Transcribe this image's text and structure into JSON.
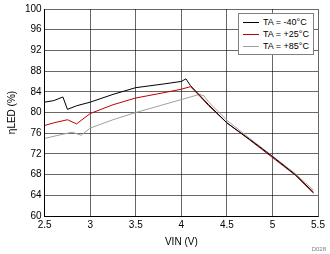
{
  "chart_data": {
    "type": "line",
    "x_label": "VIN (V)",
    "y_label": "ηLED (%)",
    "xlim": [
      2.5,
      5.5
    ],
    "xticks": [
      2.5,
      3,
      3.5,
      4,
      4.5,
      5,
      5.5
    ],
    "ylim": [
      60,
      100
    ],
    "yticks": [
      60,
      64,
      68,
      72,
      76,
      80,
      84,
      88,
      92,
      96,
      100
    ],
    "grid": true,
    "legend": "top-right",
    "annotation": "D028",
    "series": [
      {
        "name": "TA = -40°C",
        "color": "#000000",
        "x": [
          2.5,
          2.6,
          2.7,
          2.75,
          2.85,
          3.0,
          3.25,
          3.5,
          3.8,
          4.0,
          4.05,
          4.1,
          4.3,
          4.5,
          4.75,
          5.0,
          5.25,
          5.45
        ],
        "values": [
          82,
          82.3,
          83,
          80.6,
          81.3,
          82,
          83.5,
          84.8,
          85.5,
          86,
          86.5,
          85.2,
          81.5,
          78,
          74.8,
          71.5,
          68,
          64.6
        ]
      },
      {
        "name": "TA = +25°C",
        "color": "#c00000",
        "x": [
          2.5,
          2.6,
          2.75,
          2.85,
          3.0,
          3.25,
          3.5,
          3.8,
          4.0,
          4.1,
          4.2,
          4.3,
          4.5,
          4.75,
          5.0,
          5.25,
          5.45
        ],
        "values": [
          77.5,
          78,
          78.6,
          77.8,
          79.8,
          81.5,
          82.8,
          83.8,
          84.5,
          85,
          83.2,
          81.3,
          78,
          74.7,
          71.3,
          67.9,
          64.4
        ]
      },
      {
        "name": "TA = +85°C",
        "color": "#a0a0a0",
        "x": [
          2.5,
          2.7,
          2.8,
          2.9,
          3.0,
          3.25,
          3.5,
          3.8,
          4.0,
          4.2,
          4.25,
          4.3,
          4.5,
          4.75,
          5.0,
          5.25,
          5.45
        ],
        "values": [
          75,
          75.8,
          76.2,
          75.6,
          77,
          78.6,
          80,
          81.5,
          82.5,
          83.5,
          83.2,
          82,
          78.5,
          75,
          71.6,
          68.2,
          65
        ]
      }
    ]
  }
}
